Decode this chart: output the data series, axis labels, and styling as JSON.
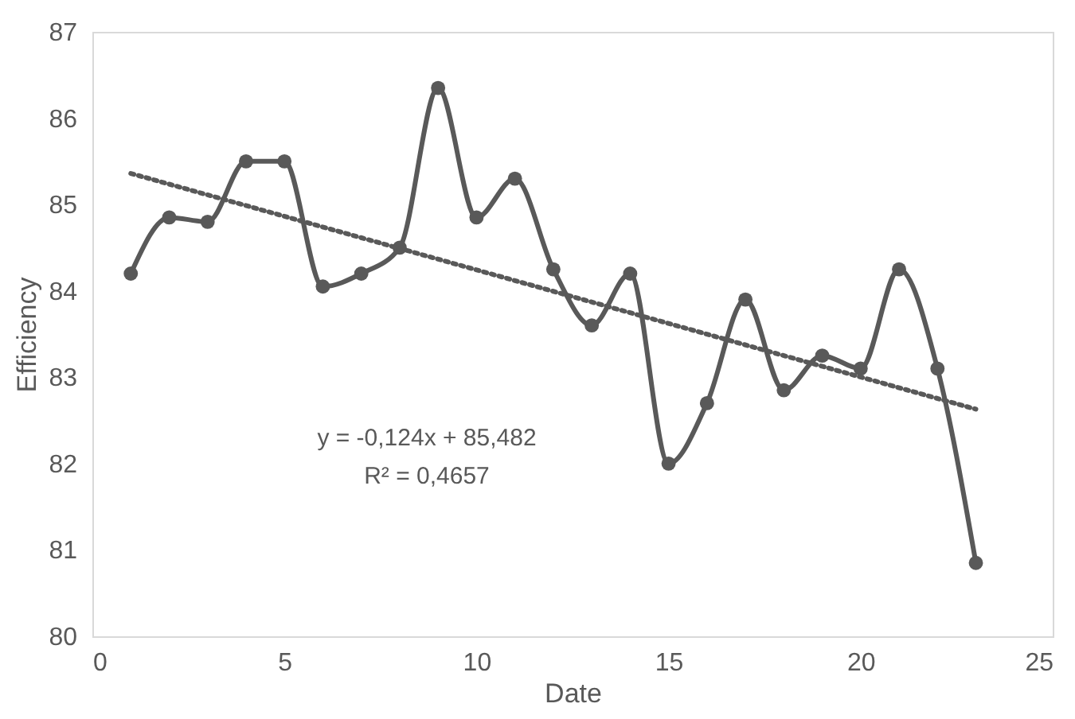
{
  "chart_data": {
    "type": "line",
    "xlabel": "Date",
    "ylabel": "Efficiency",
    "xlim": [
      0,
      25
    ],
    "xticks": [
      0,
      5,
      10,
      15,
      20,
      25
    ],
    "ylim": [
      80,
      87
    ],
    "yticks": [
      80,
      81,
      82,
      83,
      84,
      85,
      86,
      87
    ],
    "grid": false,
    "marker": "circle",
    "line_style": "solid",
    "series": [
      {
        "type": "line",
        "color": "#595959",
        "x": [
          1,
          2,
          3,
          4,
          5,
          6,
          7,
          8,
          9,
          10,
          11,
          12,
          13,
          14,
          15,
          16,
          17,
          18,
          19,
          20,
          21,
          22,
          23
        ],
        "values": [
          84.2,
          84.85,
          84.8,
          85.5,
          85.5,
          84.05,
          84.2,
          84.5,
          86.35,
          84.85,
          85.3,
          84.25,
          83.6,
          84.2,
          82.0,
          82.7,
          83.9,
          82.85,
          83.25,
          83.1,
          84.25,
          83.1,
          80.85
        ]
      },
      {
        "type": "line",
        "color": "#595959",
        "x": [
          1,
          23
        ],
        "values": [
          85.36,
          82.63
        ],
        "line_style": "dotted",
        "marker": "none"
      }
    ],
    "annotations": [
      "y = -0,124x + 85,482",
      "R² = 0,4657"
    ]
  }
}
